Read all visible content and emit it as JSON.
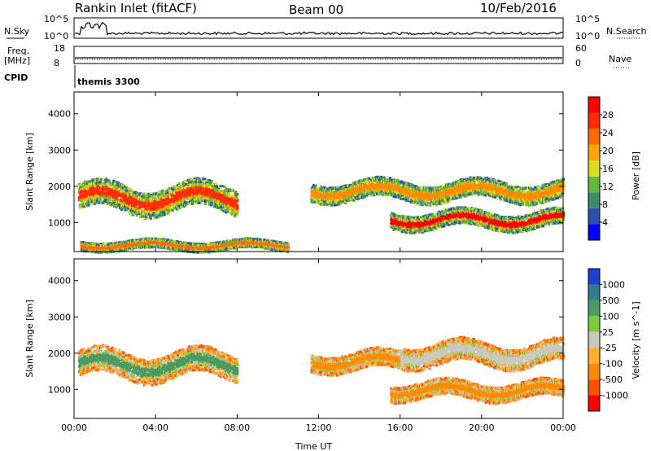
{
  "header": {
    "title": "Rankin Inlet (fitACF)",
    "beam": "Beam 00",
    "date": "10/Feb/2016"
  },
  "params": {
    "nsky_label": "N.Sky",
    "nsearch_label": "N.Search",
    "freq_label_line1": "Freq.",
    "freq_label_line2": "[MHz]",
    "nave_label": "Nave",
    "cpid_label": "CPID",
    "cpid_value": "themis 3300",
    "nsky_ticks": [
      "10^5",
      "10^0"
    ],
    "nsearch_ticks": [
      "10^5",
      "10^0"
    ],
    "freq_ticks": [
      "18",
      "8"
    ],
    "nave_ticks": [
      "60",
      "0"
    ]
  },
  "colors": {
    "power_scale": [
      "#0000ff",
      "#2b50b0",
      "#3c8c6c",
      "#5fba3f",
      "#d9df1f",
      "#ffa500",
      "#ff6a00",
      "#ff2d00",
      "#ff0000"
    ],
    "velocity_scale": [
      "#ff0000",
      "#ff5000",
      "#ff8c00",
      "#ffb030",
      "#c8c8c0",
      "#7ccc3c",
      "#4a9a62",
      "#2e7c8c",
      "#2040d0"
    ]
  },
  "chart_data": [
    {
      "type": "heatmap",
      "name": "power",
      "ylabel": "Slant Range [km]",
      "yticks": [
        1000,
        2000,
        3000,
        4000
      ],
      "ylim": [
        200,
        4600
      ],
      "xticks": [
        "00:00",
        "04:00",
        "08:00",
        "12:00",
        "16:00",
        "20:00",
        "00:00"
      ],
      "xlim": [
        0,
        24
      ],
      "colorbar": {
        "label": "Power [dB]",
        "ticks": [
          "4",
          "8",
          "12",
          "16",
          "20",
          "24",
          "28"
        ]
      },
      "bands": [
        {
          "t0": 0.2,
          "t1": 8.0,
          "r_center": 1700,
          "r_width": 700,
          "color_core": "#ff2d00"
        },
        {
          "t0": 11.6,
          "t1": 24.0,
          "r_center": 1900,
          "r_width": 500,
          "color_core": "#ff8c00"
        },
        {
          "t0": 15.5,
          "t1": 24.0,
          "r_center": 1100,
          "r_width": 450,
          "color_core": "#ff0000"
        },
        {
          "t0": 0.3,
          "t1": 10.5,
          "r_center": 400,
          "r_width": 250,
          "color_core": "#ff6a00"
        }
      ]
    },
    {
      "type": "heatmap",
      "name": "velocity",
      "ylabel": "Slant Range [km]",
      "yticks": [
        1000,
        2000,
        3000,
        4000
      ],
      "ylim": [
        200,
        4600
      ],
      "xticks": [
        "00:00",
        "04:00",
        "08:00",
        "12:00",
        "16:00",
        "20:00",
        "00:00"
      ],
      "xlim": [
        0,
        24
      ],
      "xlabel": "Time UT",
      "colorbar": {
        "label": "Velocity [m s^-1]",
        "ticks": [
          "1000",
          "500",
          "100",
          "25",
          "-25",
          "-100",
          "-500",
          "-1000"
        ]
      },
      "bands": [
        {
          "t0": 0.2,
          "t1": 8.0,
          "r_center": 1700,
          "r_width": 700,
          "color_core": "#4a9a62"
        },
        {
          "t0": 11.6,
          "t1": 16.5,
          "r_center": 1800,
          "r_width": 500,
          "color_core": "#ff8c00"
        },
        {
          "t0": 16.0,
          "t1": 24.0,
          "r_center": 2000,
          "r_width": 600,
          "color_core": "#c8c8c0"
        },
        {
          "t0": 15.5,
          "t1": 24.0,
          "r_center": 1000,
          "r_width": 450,
          "color_core": "#ff8c00"
        }
      ]
    }
  ]
}
